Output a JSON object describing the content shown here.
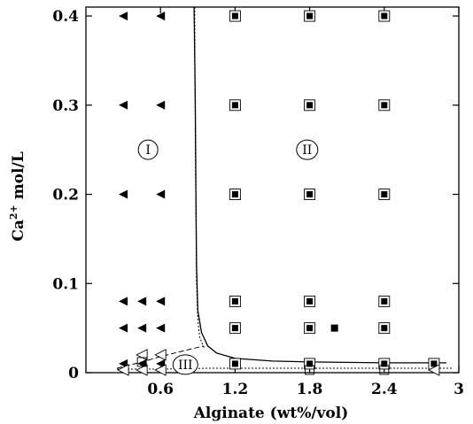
{
  "chart_data": {
    "type": "scatter",
    "xlabel": "Alginate (wt%/vol)",
    "ylabel_main": "Ca",
    "ylabel_sup": "2+",
    "ylabel_rest": " mol/L",
    "xlim": [
      0,
      3
    ],
    "ylim": [
      0,
      0.41
    ],
    "xticks": [
      {
        "value": 0.6,
        "label": "0.6"
      },
      {
        "value": 1.2,
        "label": "1.2"
      },
      {
        "value": 1.8,
        "label": "1.8"
      },
      {
        "value": 2.4,
        "label": "2.4"
      },
      {
        "value": 3.0,
        "label": "3"
      }
    ],
    "yticks": [
      {
        "value": 0,
        "label": "0"
      },
      {
        "value": 0.1,
        "label": "0.1"
      },
      {
        "value": 0.2,
        "label": "0.2"
      },
      {
        "value": 0.3,
        "label": "0.3"
      },
      {
        "value": 0.4,
        "label": "0.4"
      }
    ],
    "series": [
      {
        "marker": "filled-left-triangle",
        "points": [
          [
            0.3,
            0.4
          ],
          [
            0.6,
            0.4
          ],
          [
            0.3,
            0.3
          ],
          [
            0.6,
            0.3
          ],
          [
            0.3,
            0.2
          ],
          [
            0.6,
            0.2
          ],
          [
            0.3,
            0.08
          ],
          [
            0.45,
            0.08
          ],
          [
            0.6,
            0.08
          ],
          [
            0.3,
            0.05
          ],
          [
            0.45,
            0.05
          ],
          [
            0.6,
            0.05
          ],
          [
            0.3,
            0.01
          ],
          [
            0.45,
            0.01
          ],
          [
            0.6,
            0.01
          ]
        ]
      },
      {
        "marker": "filled-square-in-square",
        "points": [
          [
            1.2,
            0.4
          ],
          [
            1.8,
            0.4
          ],
          [
            2.4,
            0.4
          ],
          [
            1.2,
            0.3
          ],
          [
            1.8,
            0.3
          ],
          [
            2.4,
            0.3
          ],
          [
            1.2,
            0.2
          ],
          [
            1.8,
            0.2
          ],
          [
            2.4,
            0.2
          ],
          [
            1.2,
            0.08
          ],
          [
            1.8,
            0.08
          ],
          [
            2.4,
            0.08
          ],
          [
            1.2,
            0.05
          ],
          [
            1.8,
            0.05
          ],
          [
            2.4,
            0.05
          ],
          [
            1.2,
            0.01
          ],
          [
            1.8,
            0.01
          ],
          [
            2.4,
            0.01
          ],
          [
            2.8,
            0.01
          ]
        ]
      },
      {
        "marker": "filled-square",
        "points": [
          [
            2.0,
            0.05
          ]
        ]
      },
      {
        "marker": "open-left-triangle",
        "points": [
          [
            0.3,
            0.003
          ],
          [
            0.45,
            0.003
          ],
          [
            0.6,
            0.003
          ],
          [
            0.45,
            0.02
          ],
          [
            0.6,
            0.02
          ],
          [
            2.8,
            0.003
          ]
        ]
      },
      {
        "marker": "open-square",
        "points": [
          [
            0.45,
            0.012
          ],
          [
            1.8,
            0.003
          ],
          [
            2.4,
            0.003
          ]
        ]
      }
    ],
    "boundary_solid": [
      [
        0.87,
        0.41
      ],
      [
        0.88,
        0.3
      ],
      [
        0.885,
        0.2
      ],
      [
        0.89,
        0.12
      ],
      [
        0.9,
        0.07
      ],
      [
        0.93,
        0.045
      ],
      [
        0.98,
        0.03
      ],
      [
        1.05,
        0.022
      ],
      [
        1.2,
        0.016
      ],
      [
        1.5,
        0.013
      ],
      [
        1.8,
        0.012
      ],
      [
        2.4,
        0.011
      ],
      [
        2.9,
        0.011
      ]
    ],
    "boundary_dotted_vertical": [
      [
        0.875,
        0.41
      ],
      [
        0.88,
        0.25
      ],
      [
        0.89,
        0.1
      ],
      [
        0.9,
        0.06
      ],
      [
        0.915,
        0.04
      ],
      [
        0.95,
        0.028
      ]
    ],
    "boundary_dotted_horizontal": [
      [
        0.25,
        0.004
      ],
      [
        0.6,
        0.004
      ],
      [
        1.0,
        0.005
      ],
      [
        2.0,
        0.005
      ],
      [
        2.95,
        0.005
      ]
    ],
    "boundary_dashed": [
      [
        0.25,
        0.005
      ],
      [
        0.45,
        0.012
      ],
      [
        0.6,
        0.018
      ],
      [
        0.8,
        0.025
      ],
      [
        0.95,
        0.03
      ]
    ],
    "regions": [
      {
        "label": "I",
        "x": 0.5,
        "y": 0.25
      },
      {
        "label": "II",
        "x": 1.78,
        "y": 0.25
      },
      {
        "label": "III",
        "x": 0.8,
        "y": 0.009
      }
    ]
  }
}
